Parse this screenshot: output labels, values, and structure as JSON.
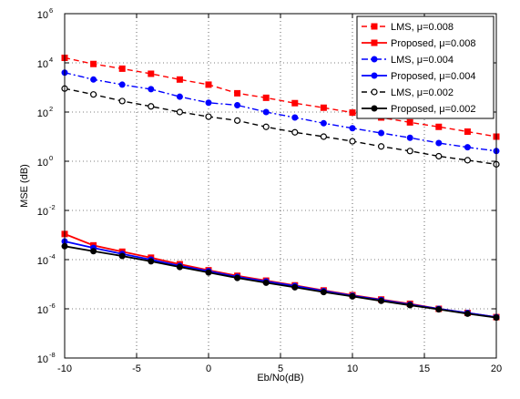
{
  "chart_data": {
    "type": "line",
    "title": "",
    "xlabel": "Eb/No(dB)",
    "ylabel": "MSE (dB)",
    "xlim": [
      -10,
      20
    ],
    "ylim": [
      1e-08,
      1000000.0
    ],
    "yscale": "log",
    "grid": true,
    "legend_position": "top-right",
    "x_ticks": [
      -10,
      -5,
      0,
      5,
      10,
      15,
      20
    ],
    "y_ticks": [
      {
        "base": "10",
        "exp": "-8",
        "value": 1e-08
      },
      {
        "base": "10",
        "exp": "-6",
        "value": 1e-06
      },
      {
        "base": "10",
        "exp": "-4",
        "value": 0.0001
      },
      {
        "base": "10",
        "exp": "-2",
        "value": 0.01
      },
      {
        "base": "10",
        "exp": "0",
        "value": 1
      },
      {
        "base": "10",
        "exp": "2",
        "value": 100
      },
      {
        "base": "10",
        "exp": "4",
        "value": 10000.0
      },
      {
        "base": "10",
        "exp": "6",
        "value": 1000000.0
      }
    ],
    "x": [
      -10,
      -8,
      -6,
      -4,
      -2,
      0,
      2,
      4,
      6,
      8,
      10,
      12,
      14,
      16,
      18,
      20
    ],
    "series": [
      {
        "name": "LMS, μ=0.008",
        "color": "#ff0000",
        "dash": "dashed",
        "marker": "square",
        "values": [
          16000,
          9000,
          5800,
          3600,
          2100,
          1300,
          580,
          380,
          230,
          150,
          95,
          60,
          38,
          25,
          16,
          10
        ]
      },
      {
        "name": "Proposed, μ=0.008",
        "color": "#ff0000",
        "dash": "solid",
        "marker": "square",
        "values": [
          0.0011,
          0.00038,
          0.00021,
          0.00012,
          6.5e-05,
          3.7e-05,
          2.2e-05,
          1.4e-05,
          9e-06,
          5.6e-06,
          3.6e-06,
          2.4e-06,
          1.6e-06,
          1e-06,
          6.8e-07,
          4.6e-07
        ]
      },
      {
        "name": "LMS, μ=0.004",
        "color": "#0000ff",
        "dash": "dashdot",
        "marker": "circle",
        "values": [
          4000,
          2100,
          1300,
          850,
          420,
          240,
          190,
          100,
          60,
          35,
          22,
          14,
          9,
          5.5,
          3.7,
          2.6
        ]
      },
      {
        "name": "Proposed, μ=0.004",
        "color": "#0000ff",
        "dash": "solid",
        "marker": "circle",
        "values": [
          0.00055,
          0.0003,
          0.00017,
          0.0001,
          5.6e-05,
          3.4e-05,
          2e-05,
          1.3e-05,
          8.5e-06,
          5.3e-06,
          3.4e-06,
          2.3e-06,
          1.5e-06,
          1e-06,
          6.8e-07,
          4.6e-07
        ]
      },
      {
        "name": "LMS, μ=0.002",
        "color": "#000000",
        "dash": "dashed",
        "marker": "open-circle",
        "values": [
          900,
          520,
          280,
          170,
          100,
          65,
          45,
          25,
          15,
          10,
          6.5,
          4,
          2.6,
          1.6,
          1.1,
          0.75
        ]
      },
      {
        "name": "Proposed, μ=0.002",
        "color": "#000000",
        "dash": "solid",
        "marker": "filled-circle",
        "values": [
          0.00035,
          0.00022,
          0.00014,
          8.5e-05,
          5e-05,
          3e-05,
          1.8e-05,
          1.15e-05,
          7.5e-06,
          4.8e-06,
          3.2e-06,
          2.1e-06,
          1.4e-06,
          9.5e-07,
          6.3e-07,
          4.4e-07
        ]
      }
    ]
  }
}
